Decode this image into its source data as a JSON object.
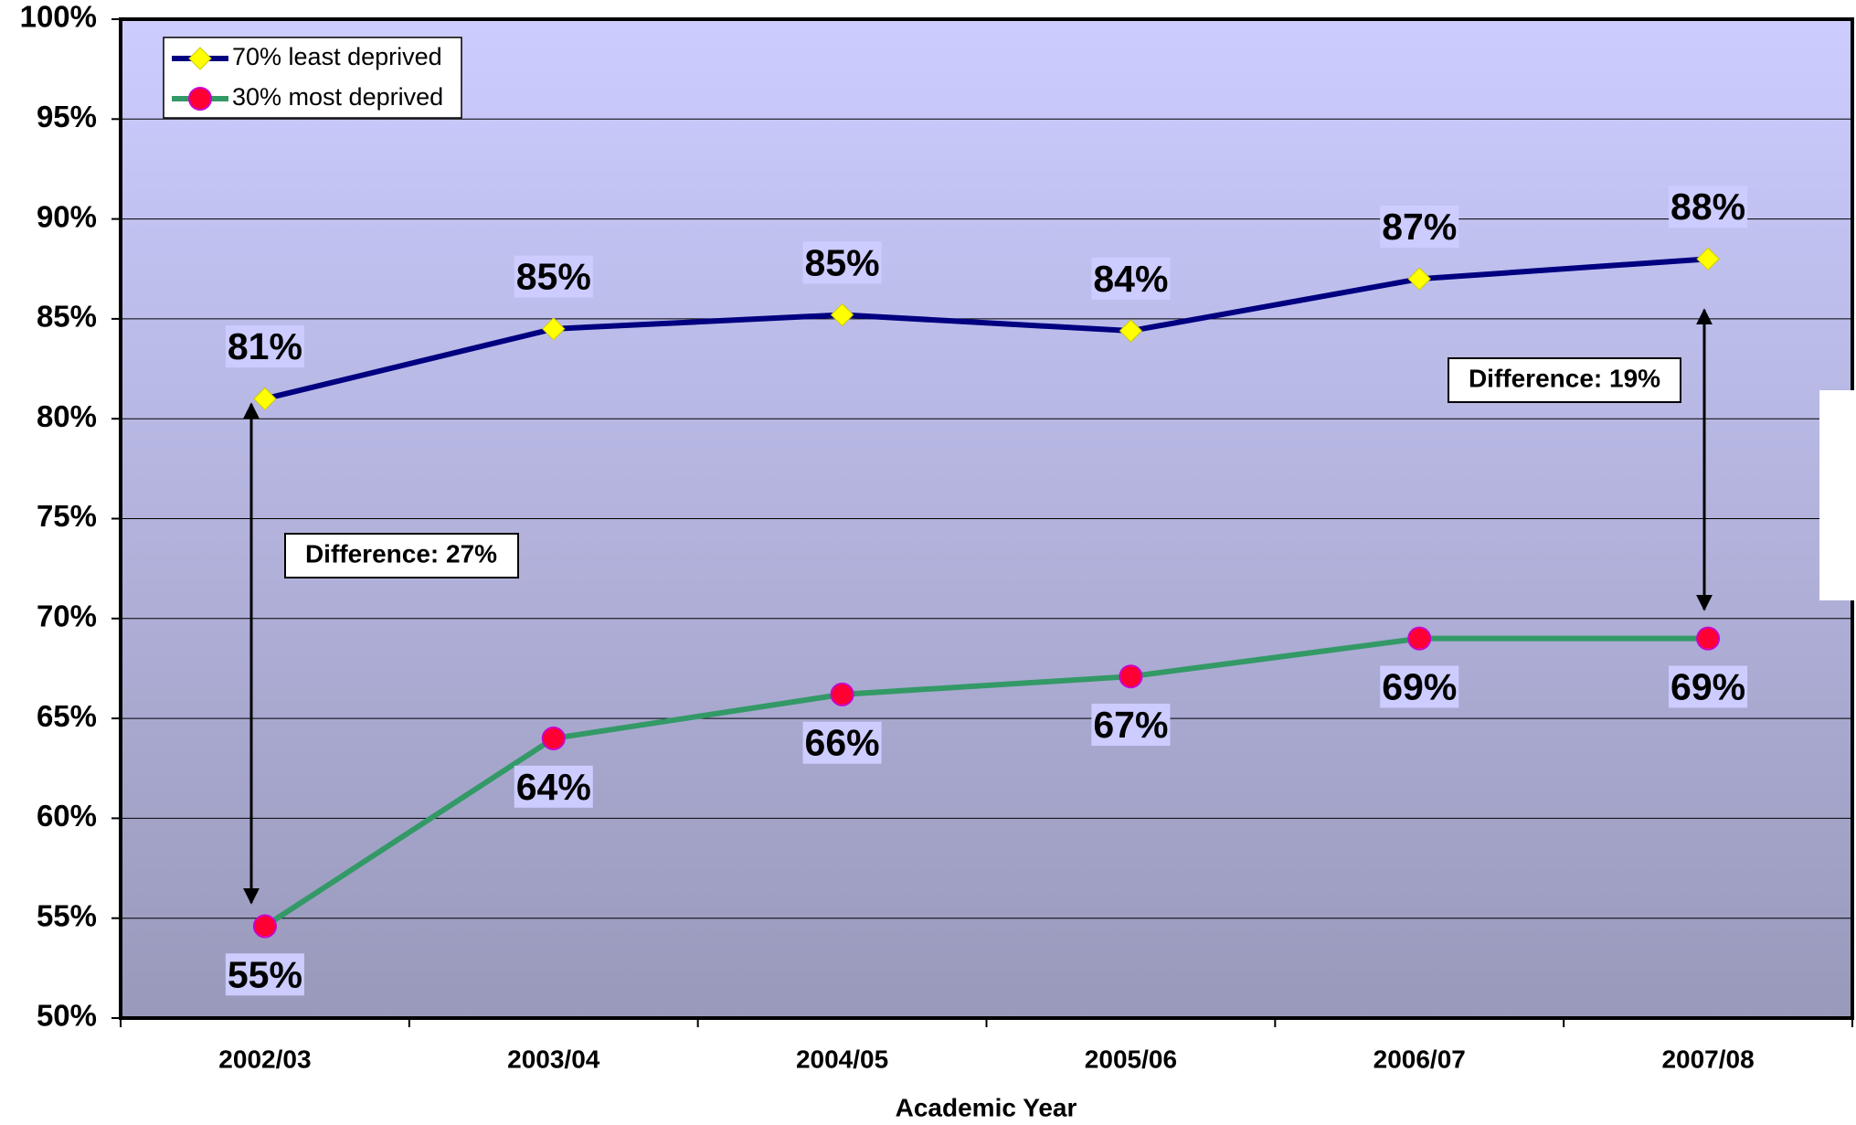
{
  "chart_data": {
    "type": "line",
    "x_label": "Academic Year",
    "categories": [
      "2002/03",
      "2003/04",
      "2004/05",
      "2005/06",
      "2006/07",
      "2007/08"
    ],
    "series": [
      {
        "name": "70% least deprived",
        "color": "#000080",
        "marker_color": "#ffff00",
        "values": [
          81,
          84.5,
          85.2,
          84.4,
          87,
          88
        ],
        "value_labels": [
          "81%",
          "85%",
          "85%",
          "84%",
          "87%",
          "88%"
        ]
      },
      {
        "name": "30% most deprived",
        "color": "#339966",
        "marker_color": "#ff0033",
        "values": [
          54.6,
          64,
          66.2,
          67.1,
          69,
          69
        ],
        "value_labels": [
          "55%",
          "64%",
          "66%",
          "67%",
          "69%",
          "69%"
        ]
      }
    ],
    "annotations": [
      "Difference: 27%",
      "Difference: 19%"
    ],
    "ylim": [
      50,
      100
    ],
    "yticks": [
      {
        "value": 50,
        "label": "50%"
      },
      {
        "value": 55,
        "label": "55%"
      },
      {
        "value": 60,
        "label": "60%"
      },
      {
        "value": 65,
        "label": "65%"
      },
      {
        "value": 70,
        "label": "70%"
      },
      {
        "value": 75,
        "label": "75%"
      },
      {
        "value": 80,
        "label": "80%"
      },
      {
        "value": 85,
        "label": "85%"
      },
      {
        "value": 90,
        "label": "90%"
      },
      {
        "value": 95,
        "label": "95%"
      },
      {
        "value": 100,
        "label": "100%"
      }
    ],
    "grid": true,
    "legend": "top-left"
  }
}
